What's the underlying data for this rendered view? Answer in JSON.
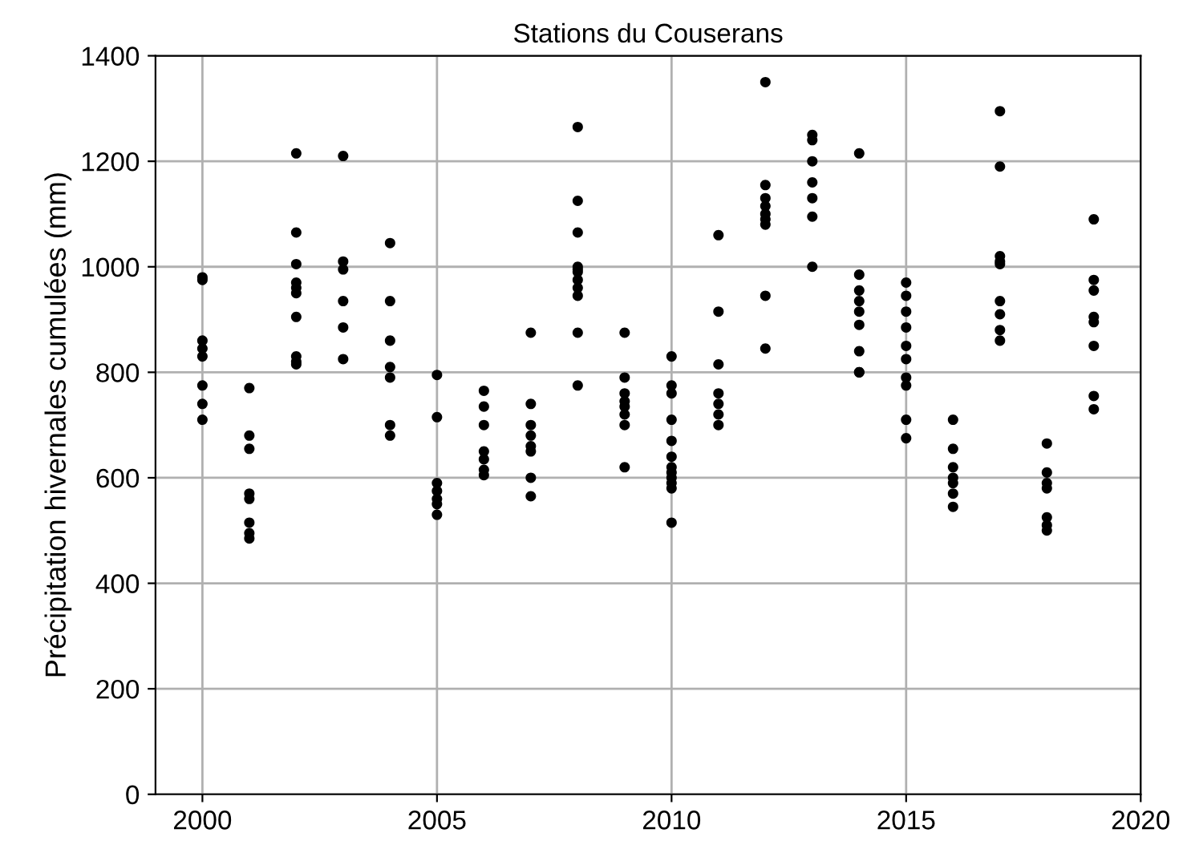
{
  "chart_data": {
    "type": "scatter",
    "title": "Stations du Couserans",
    "ylabel": "Précipitation hivernales cumulées (mm)",
    "x": [
      2000,
      2000,
      2000,
      2000,
      2000,
      2000,
      2000,
      2000,
      2001,
      2001,
      2001,
      2001,
      2001,
      2001,
      2001,
      2001,
      2002,
      2002,
      2002,
      2002,
      2002,
      2002,
      2002,
      2002,
      2002,
      2002,
      2003,
      2003,
      2003,
      2003,
      2003,
      2003,
      2004,
      2004,
      2004,
      2004,
      2004,
      2004,
      2004,
      2005,
      2005,
      2005,
      2005,
      2005,
      2005,
      2005,
      2006,
      2006,
      2006,
      2006,
      2006,
      2006,
      2006,
      2007,
      2007,
      2007,
      2007,
      2007,
      2007,
      2007,
      2007,
      2008,
      2008,
      2008,
      2008,
      2008,
      2008,
      2008,
      2008,
      2008,
      2008,
      2008,
      2009,
      2009,
      2009,
      2009,
      2009,
      2009,
      2009,
      2009,
      2010,
      2010,
      2010,
      2010,
      2010,
      2010,
      2010,
      2010,
      2010,
      2010,
      2010,
      2010,
      2011,
      2011,
      2011,
      2011,
      2011,
      2011,
      2011,
      2012,
      2012,
      2012,
      2012,
      2012,
      2012,
      2012,
      2012,
      2012,
      2013,
      2013,
      2013,
      2013,
      2013,
      2013,
      2013,
      2014,
      2014,
      2014,
      2014,
      2014,
      2014,
      2014,
      2014,
      2014,
      2015,
      2015,
      2015,
      2015,
      2015,
      2015,
      2015,
      2015,
      2015,
      2015,
      2016,
      2016,
      2016,
      2016,
      2016,
      2016,
      2016,
      2017,
      2017,
      2017,
      2017,
      2017,
      2017,
      2017,
      2017,
      2017,
      2018,
      2018,
      2018,
      2018,
      2018,
      2018,
      2018,
      2019,
      2019,
      2019,
      2019,
      2019,
      2019,
      2019,
      2019
    ],
    "values": [
      980,
      975,
      860,
      845,
      830,
      775,
      740,
      710,
      770,
      680,
      655,
      570,
      560,
      515,
      495,
      485,
      1215,
      1065,
      1005,
      970,
      960,
      950,
      905,
      830,
      820,
      815,
      1210,
      1010,
      995,
      935,
      885,
      825,
      1045,
      935,
      860,
      810,
      790,
      700,
      680,
      795,
      715,
      590,
      575,
      560,
      550,
      530,
      765,
      735,
      700,
      650,
      635,
      615,
      605,
      875,
      740,
      700,
      680,
      660,
      650,
      600,
      565,
      1265,
      1125,
      1065,
      1000,
      995,
      990,
      975,
      960,
      945,
      875,
      775,
      875,
      790,
      760,
      745,
      735,
      720,
      700,
      620,
      830,
      775,
      760,
      710,
      670,
      640,
      620,
      610,
      600,
      590,
      580,
      515,
      1060,
      915,
      815,
      760,
      740,
      720,
      700,
      1350,
      1155,
      1130,
      1115,
      1100,
      1090,
      1080,
      945,
      845,
      1250,
      1240,
      1200,
      1160,
      1130,
      1095,
      1000,
      1215,
      985,
      955,
      935,
      915,
      890,
      840,
      800,
      800,
      970,
      945,
      915,
      885,
      850,
      825,
      790,
      775,
      710,
      675,
      710,
      655,
      620,
      600,
      590,
      570,
      545,
      1295,
      1190,
      1020,
      1010,
      1005,
      935,
      910,
      880,
      860,
      665,
      610,
      590,
      580,
      525,
      510,
      500,
      1090,
      975,
      955,
      905,
      895,
      850,
      755,
      730
    ],
    "color": "#000000",
    "marker": "circle",
    "xlim": [
      1999,
      2020
    ],
    "xticks": [
      2000,
      2005,
      2010,
      2015,
      2020
    ],
    "ylim": [
      0,
      1400
    ],
    "yticks": [
      0,
      200,
      400,
      600,
      800,
      1000,
      1200,
      1400
    ],
    "grid": true
  }
}
